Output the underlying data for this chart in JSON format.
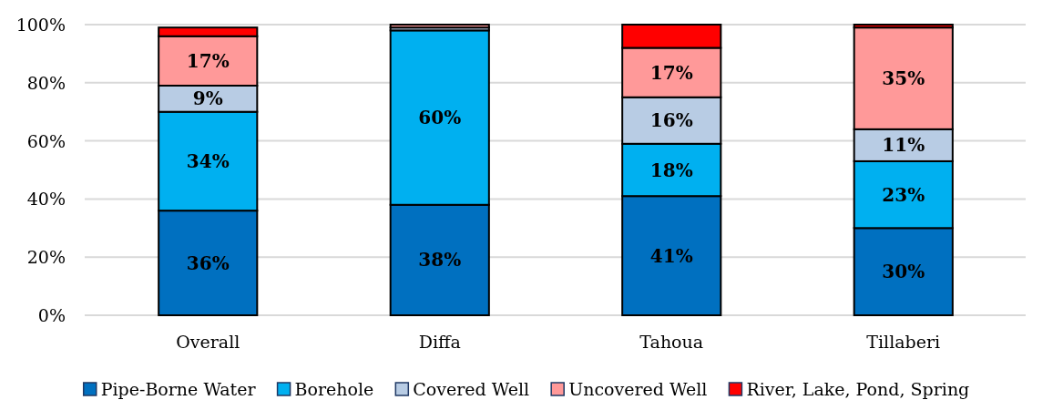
{
  "chart_data": {
    "type": "bar",
    "stacked": true,
    "categories": [
      "Overall",
      "Diffa",
      "Tahoua",
      "Tillaberi"
    ],
    "series": [
      {
        "name": "Pipe-Borne Water",
        "color": "#0070c0",
        "values": [
          36,
          38,
          41,
          30
        ],
        "value_labels": [
          "36%",
          "38%",
          "41%",
          "30%"
        ]
      },
      {
        "name": "Borehole",
        "color": "#00b0f0",
        "values": [
          34,
          60,
          18,
          23
        ],
        "value_labels": [
          "34%",
          "60%",
          "18%",
          "23%"
        ]
      },
      {
        "name": "Covered Well",
        "color": "#b8cce4",
        "values": [
          9,
          1,
          16,
          11
        ],
        "value_labels": [
          "9%",
          null,
          "16%",
          "11%"
        ]
      },
      {
        "name": "Uncovered Well",
        "color": "#ff9999",
        "values": [
          17,
          1,
          17,
          35
        ],
        "value_labels": [
          "17%",
          null,
          "17%",
          "35%"
        ]
      },
      {
        "name": "River, Lake, Pond, Spring",
        "color": "#ff0000",
        "values": [
          3,
          null,
          8,
          1
        ]
      }
    ],
    "ylim": [
      0,
      100
    ],
    "yticks": [
      {
        "value": 0,
        "label": "0%"
      },
      {
        "value": 20,
        "label": "20%"
      },
      {
        "value": 40,
        "label": "40%"
      },
      {
        "value": 60,
        "label": "60%"
      },
      {
        "value": 80,
        "label": "80%"
      },
      {
        "value": 100,
        "label": "100%"
      }
    ],
    "grid": "y",
    "legend": "bottom"
  }
}
